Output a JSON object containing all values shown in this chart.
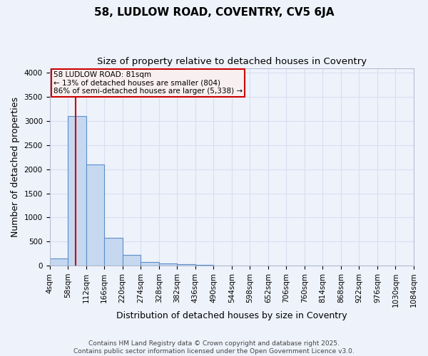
{
  "title": "58, LUDLOW ROAD, COVENTRY, CV5 6JA",
  "subtitle": "Size of property relative to detached houses in Coventry",
  "xlabel": "Distribution of detached houses by size in Coventry",
  "ylabel": "Number of detached properties",
  "bin_edges": [
    4,
    58,
    112,
    166,
    220,
    274,
    328,
    382,
    436,
    490,
    544,
    598,
    652,
    706,
    760,
    814,
    868,
    922,
    976,
    1030,
    1084
  ],
  "bar_heights": [
    150,
    3100,
    2100,
    580,
    220,
    80,
    50,
    25,
    12,
    8,
    5,
    3,
    2,
    1,
    1,
    1,
    1,
    0,
    0,
    0
  ],
  "bar_color": "#c5d8f0",
  "bar_edge_color": "#5b8fc9",
  "property_size": 81,
  "annotation_line1": "58 LUDLOW ROAD: 81sqm",
  "annotation_line2": "← 13% of detached houses are smaller (804)",
  "annotation_line3": "86% of semi-detached houses are larger (5,338) →",
  "vline_color": "#cc0000",
  "annotation_box_edgecolor": "#cc0000",
  "annotation_box_facecolor": "#f8f0f0",
  "ylim": [
    0,
    4100
  ],
  "yticks": [
    0,
    500,
    1000,
    1500,
    2000,
    2500,
    3000,
    3500,
    4000
  ],
  "footer_line1": "Contains HM Land Registry data © Crown copyright and database right 2025.",
  "footer_line2": "Contains public sector information licensed under the Open Government Licence v3.0.",
  "background_color": "#eef2fb",
  "grid_color": "#d8dff0",
  "title_fontsize": 11,
  "subtitle_fontsize": 9.5,
  "axis_label_fontsize": 9,
  "tick_fontsize": 7.5,
  "footer_fontsize": 6.5,
  "annotation_fontsize": 7.5
}
